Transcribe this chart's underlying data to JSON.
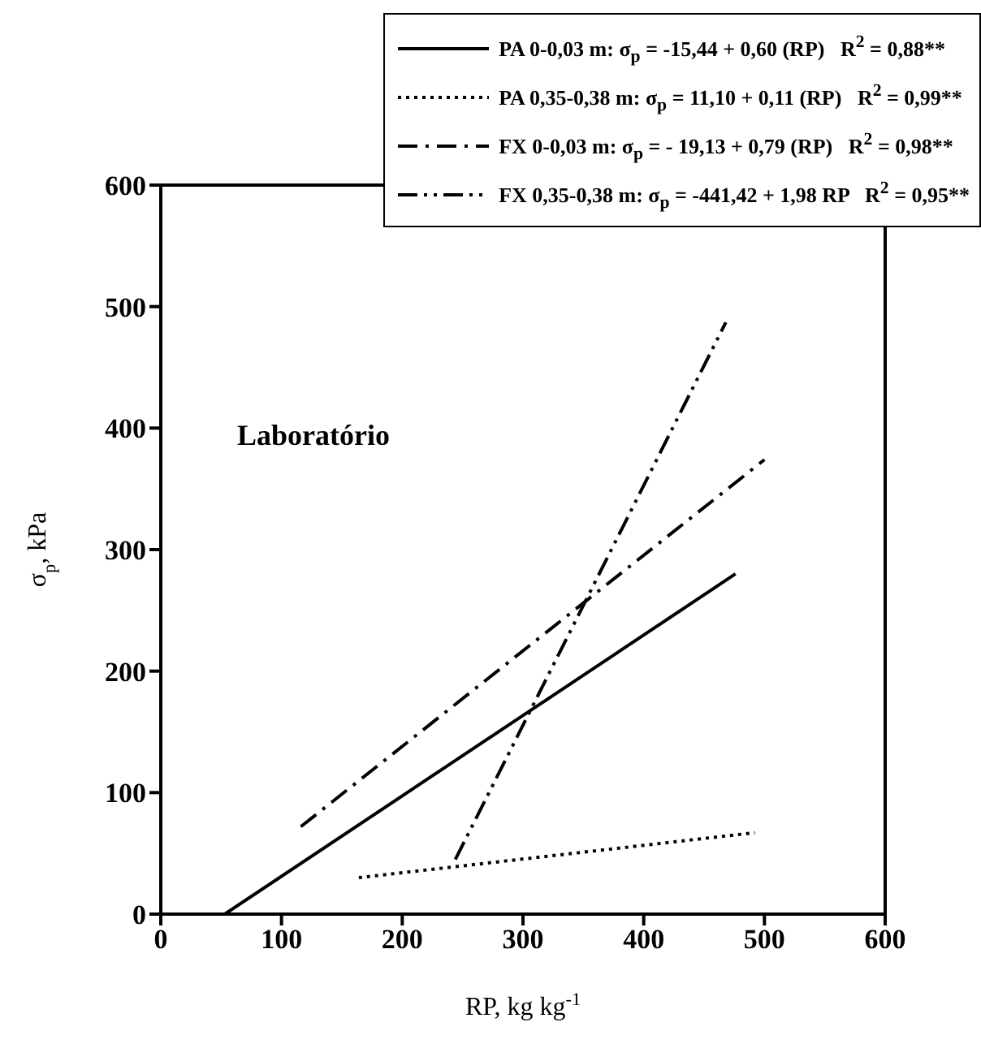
{
  "chart_data": {
    "type": "line",
    "xlabel": "RP, kg kg$^{-1}$",
    "ylabel": "σ$_{p}$, kPa",
    "annotations": [
      "Laboratório"
    ],
    "xlim": [
      0,
      600
    ],
    "xticks": [
      0,
      100,
      200,
      300,
      400,
      500,
      600
    ],
    "ylim": [
      0,
      600
    ],
    "yticks": [
      0,
      100,
      200,
      300,
      400,
      500,
      600
    ],
    "grid": false,
    "legend": "top right",
    "marker": "none",
    "series": [
      {
        "name": "PA 0-0,03 m: σ$_{p}$ = -15,44 + 0,60 (RP)   R$^{2}$ = 0,88**",
        "color": "#000000",
        "line_style": "solid",
        "x": [
          53,
          476
        ],
        "values": [
          0,
          280
        ]
      },
      {
        "name": "PA 0,35-0,38 m: σ$_{p}$ = 11,10 + 0,11 (RP)   R$^{2}$ = 0,99**",
        "color": "#000000",
        "line_style": "dotted",
        "x": [
          164,
          492
        ],
        "values": [
          30,
          67
        ]
      },
      {
        "name": "FX 0-0,03 m: σ$_{p}$ = - 19,13 + 0,79 (RP)   R$^{2}$ = 0,98**",
        "color": "#000000",
        "line_style": "dashdot",
        "x": [
          116,
          500
        ],
        "values": [
          72,
          374
        ]
      },
      {
        "name": "FX 0,35-0,38 m: σ$_{p}$ = -441,42 + 1,98 RP   R$^{2}$ = 0,95**",
        "color": "#000000",
        "line_style": "dashdotdot",
        "x": [
          244,
          468
        ],
        "values": [
          45,
          487
        ]
      }
    ]
  }
}
